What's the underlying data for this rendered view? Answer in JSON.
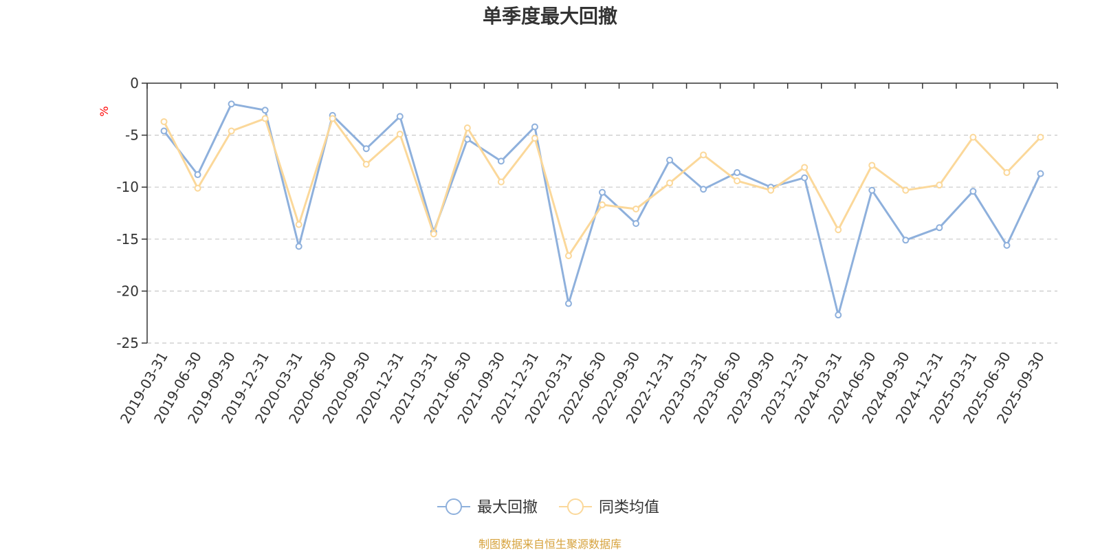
{
  "chart_data": {
    "type": "line",
    "title": "单季度最大回撤",
    "ylabel": "%",
    "xlabel": "",
    "ylim": [
      -25,
      0
    ],
    "yticks": [
      0,
      -5,
      -10,
      -15,
      -20,
      -25
    ],
    "grid": true,
    "legend_position": "bottom-center",
    "categories": [
      "2019-03-31",
      "2019-06-30",
      "2019-09-30",
      "2019-12-31",
      "2020-03-31",
      "2020-06-30",
      "2020-09-30",
      "2020-12-31",
      "2021-03-31",
      "2021-06-30",
      "2021-09-30",
      "2021-12-31",
      "2022-03-31",
      "2022-06-30",
      "2022-09-30",
      "2022-12-31",
      "2023-03-31",
      "2023-06-30",
      "2023-09-30",
      "2023-12-31",
      "2024-03-31",
      "2024-06-30",
      "2024-09-30",
      "2024-12-31",
      "2025-03-31",
      "2025-06-30",
      "2025-09-30"
    ],
    "series": [
      {
        "name": "最大回撤",
        "color": "#8eb0dc",
        "values": [
          -4.6,
          -8.8,
          -2.0,
          -2.6,
          -15.7,
          -3.1,
          -6.3,
          -3.2,
          -14.3,
          -5.4,
          -7.5,
          -4.2,
          -21.2,
          -10.5,
          -13.5,
          -7.4,
          -10.2,
          -8.6,
          -10.0,
          -9.1,
          -22.3,
          -10.3,
          -15.1,
          -13.9,
          -10.4,
          -15.6,
          -8.7
        ]
      },
      {
        "name": "同类均值",
        "color": "#fbd89a",
        "values": [
          -3.7,
          -10.1,
          -4.6,
          -3.4,
          -13.6,
          -3.4,
          -7.8,
          -4.9,
          -14.5,
          -4.3,
          -9.5,
          -5.3,
          -16.6,
          -11.7,
          -12.1,
          -9.6,
          -6.9,
          -9.4,
          -10.3,
          -8.1,
          -14.1,
          -7.9,
          -10.3,
          -9.8,
          -5.2,
          -8.6,
          -5.2
        ]
      }
    ],
    "unit_color": "#ff0000",
    "source_color": "#d6a23c"
  },
  "source_text": "制图数据来自恒生聚源数据库"
}
